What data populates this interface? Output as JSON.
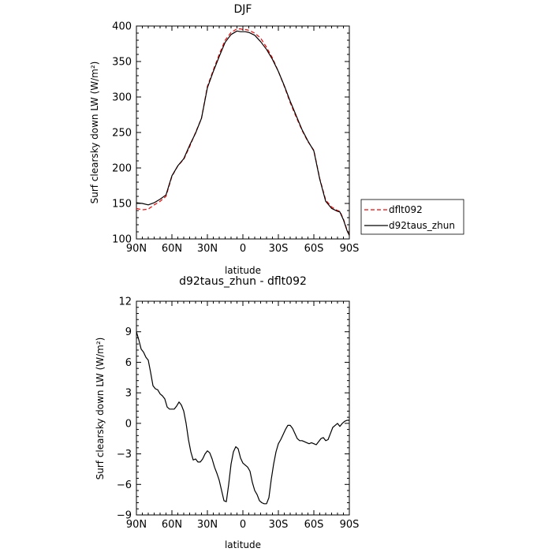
{
  "chart_data": [
    {
      "type": "line",
      "title": "DJF",
      "xlabel": "latitude",
      "ylabel": "Surf clearsky down LW (W/m²)",
      "ylim": [
        100,
        400
      ],
      "yticks": [
        100,
        150,
        200,
        250,
        300,
        350,
        400
      ],
      "xlim": [
        90,
        -90
      ],
      "xticks": [
        90,
        60,
        30,
        0,
        -30,
        -60,
        -90
      ],
      "xtick_labels": [
        "90N",
        "60N",
        "30N",
        "0",
        "30S",
        "60S",
        "90S"
      ],
      "legend_position": "right",
      "series": [
        {
          "name": "dflt092",
          "color": "#ff0000",
          "dash": true,
          "x": [
            90,
            85,
            80,
            75,
            70,
            65,
            60,
            55,
            50,
            45,
            40,
            35,
            30,
            25,
            20,
            15,
            10,
            5,
            2,
            0,
            -2,
            -5,
            -10,
            -15,
            -20,
            -25,
            -30,
            -35,
            -40,
            -45,
            -50,
            -55,
            -60,
            -65,
            -70,
            -75,
            -80,
            -82,
            -85,
            -88,
            -90
          ],
          "y": [
            143,
            141,
            142,
            148,
            153,
            160,
            188,
            203,
            212,
            230,
            250,
            270,
            315,
            338,
            360,
            380,
            391,
            396,
            396,
            395,
            395,
            394,
            390,
            383,
            370,
            355,
            336,
            315,
            292,
            272,
            253,
            237,
            225,
            185,
            155,
            145,
            140,
            139,
            128,
            113,
            105
          ]
        },
        {
          "name": "d92taus_zhun",
          "color": "#000000",
          "dash": false,
          "x": [
            90,
            85,
            80,
            75,
            70,
            65,
            60,
            55,
            50,
            45,
            40,
            35,
            30,
            25,
            20,
            15,
            10,
            5,
            2,
            0,
            -2,
            -5,
            -10,
            -15,
            -20,
            -25,
            -30,
            -35,
            -40,
            -45,
            -50,
            -55,
            -60,
            -65,
            -70,
            -75,
            -80,
            -82,
            -85,
            -88,
            -90
          ],
          "y": [
            151,
            150,
            148,
            151,
            156,
            162,
            189,
            203,
            213,
            232,
            249,
            270,
            313,
            336,
            357,
            377,
            388,
            393,
            392,
            392,
            392,
            391,
            387,
            378,
            367,
            353,
            336,
            316,
            294,
            274,
            254,
            238,
            224,
            184,
            153,
            143,
            139,
            138,
            127,
            112,
            105
          ]
        }
      ]
    },
    {
      "type": "line",
      "title": "d92taus_zhun - dflt092",
      "xlabel": "latitude",
      "ylabel": "Surf clearsky down LW (W/m²)",
      "ylim": [
        -9,
        12
      ],
      "yticks": [
        -9,
        -6,
        -3,
        0,
        3,
        6,
        9,
        12
      ],
      "xlim": [
        90,
        -90
      ],
      "xticks": [
        90,
        60,
        30,
        0,
        -30,
        -60,
        -90
      ],
      "xtick_labels": [
        "90N",
        "60N",
        "30N",
        "0",
        "30S",
        "60S",
        "90S"
      ],
      "series": [
        {
          "name": "",
          "color": "#000000",
          "dash": false,
          "x": [
            90,
            88,
            86,
            84,
            82,
            80,
            78,
            76,
            74,
            72,
            70,
            68,
            66,
            64,
            62,
            60,
            58,
            56,
            54,
            52,
            50,
            48,
            46,
            44,
            42,
            40,
            38,
            36,
            34,
            32,
            30,
            28,
            26,
            24,
            22,
            20,
            18,
            16,
            14,
            12,
            10,
            8,
            6,
            4,
            2,
            0,
            -2,
            -4,
            -6,
            -8,
            -10,
            -12,
            -14,
            -16,
            -18,
            -20,
            -22,
            -24,
            -26,
            -28,
            -30,
            -32,
            -34,
            -36,
            -38,
            -40,
            -42,
            -44,
            -46,
            -48,
            -50,
            -52,
            -54,
            -56,
            -58,
            -60,
            -62,
            -64,
            -66,
            -68,
            -70,
            -72,
            -74,
            -76,
            -78,
            -80,
            -82,
            -84,
            -86,
            -88,
            -90
          ],
          "y": [
            9.0,
            8.2,
            7.3,
            7.0,
            6.5,
            6.2,
            5.0,
            3.7,
            3.4,
            3.3,
            2.9,
            2.7,
            2.4,
            1.6,
            1.4,
            1.4,
            1.4,
            1.7,
            2.1,
            1.8,
            1.2,
            0.0,
            -1.6,
            -2.8,
            -3.6,
            -3.5,
            -3.8,
            -3.8,
            -3.5,
            -3.0,
            -2.7,
            -2.9,
            -3.5,
            -4.3,
            -4.9,
            -5.6,
            -6.6,
            -7.6,
            -7.7,
            -6.0,
            -4.0,
            -2.8,
            -2.3,
            -2.5,
            -3.4,
            -3.9,
            -4.1,
            -4.3,
            -4.7,
            -5.8,
            -6.6,
            -7.0,
            -7.6,
            -7.8,
            -7.9,
            -7.9,
            -7.3,
            -5.5,
            -4.0,
            -2.8,
            -2.0,
            -1.6,
            -1.1,
            -0.6,
            -0.2,
            -0.2,
            -0.5,
            -1.0,
            -1.5,
            -1.7,
            -1.7,
            -1.8,
            -1.9,
            -2.0,
            -1.9,
            -2.0,
            -2.1,
            -1.8,
            -1.5,
            -1.4,
            -1.7,
            -1.6,
            -1.0,
            -0.4,
            -0.2,
            0.0,
            -0.3,
            0.0,
            0.2,
            0.3,
            0.3
          ]
        }
      ]
    }
  ]
}
